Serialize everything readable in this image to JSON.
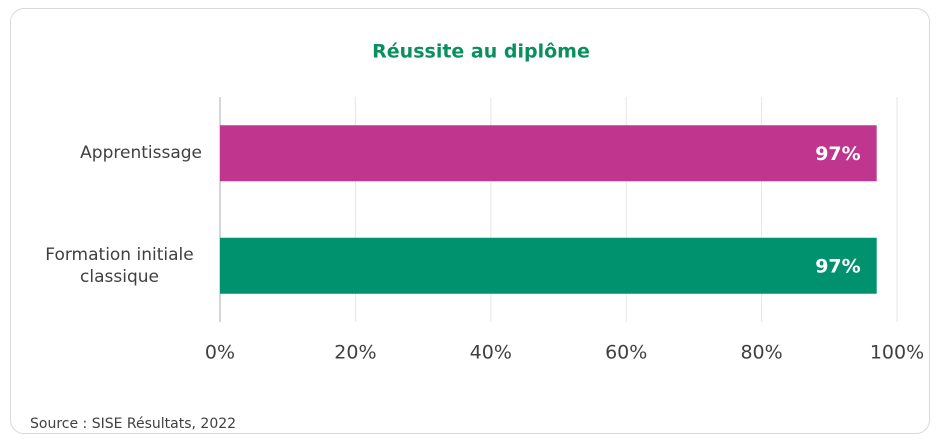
{
  "chart_data": {
    "type": "hbar",
    "title": "Réussite au diplôme",
    "categories": [
      "Apprentissage",
      "Formation initiale classique"
    ],
    "values": [
      97,
      97
    ],
    "value_labels": [
      "97%",
      "97%"
    ],
    "colors": [
      "#c0368f",
      "#00916e"
    ],
    "xlim": [
      0,
      100
    ],
    "xticks": [
      {
        "value": 0,
        "label": "0%"
      },
      {
        "value": 20,
        "label": "20%"
      },
      {
        "value": 40,
        "label": "40%"
      },
      {
        "value": 60,
        "label": "60%"
      },
      {
        "value": 80,
        "label": "80%"
      },
      {
        "value": 100,
        "label": "100%"
      }
    ],
    "grid": true,
    "source": "Source : SISE Résultats, 2022"
  }
}
